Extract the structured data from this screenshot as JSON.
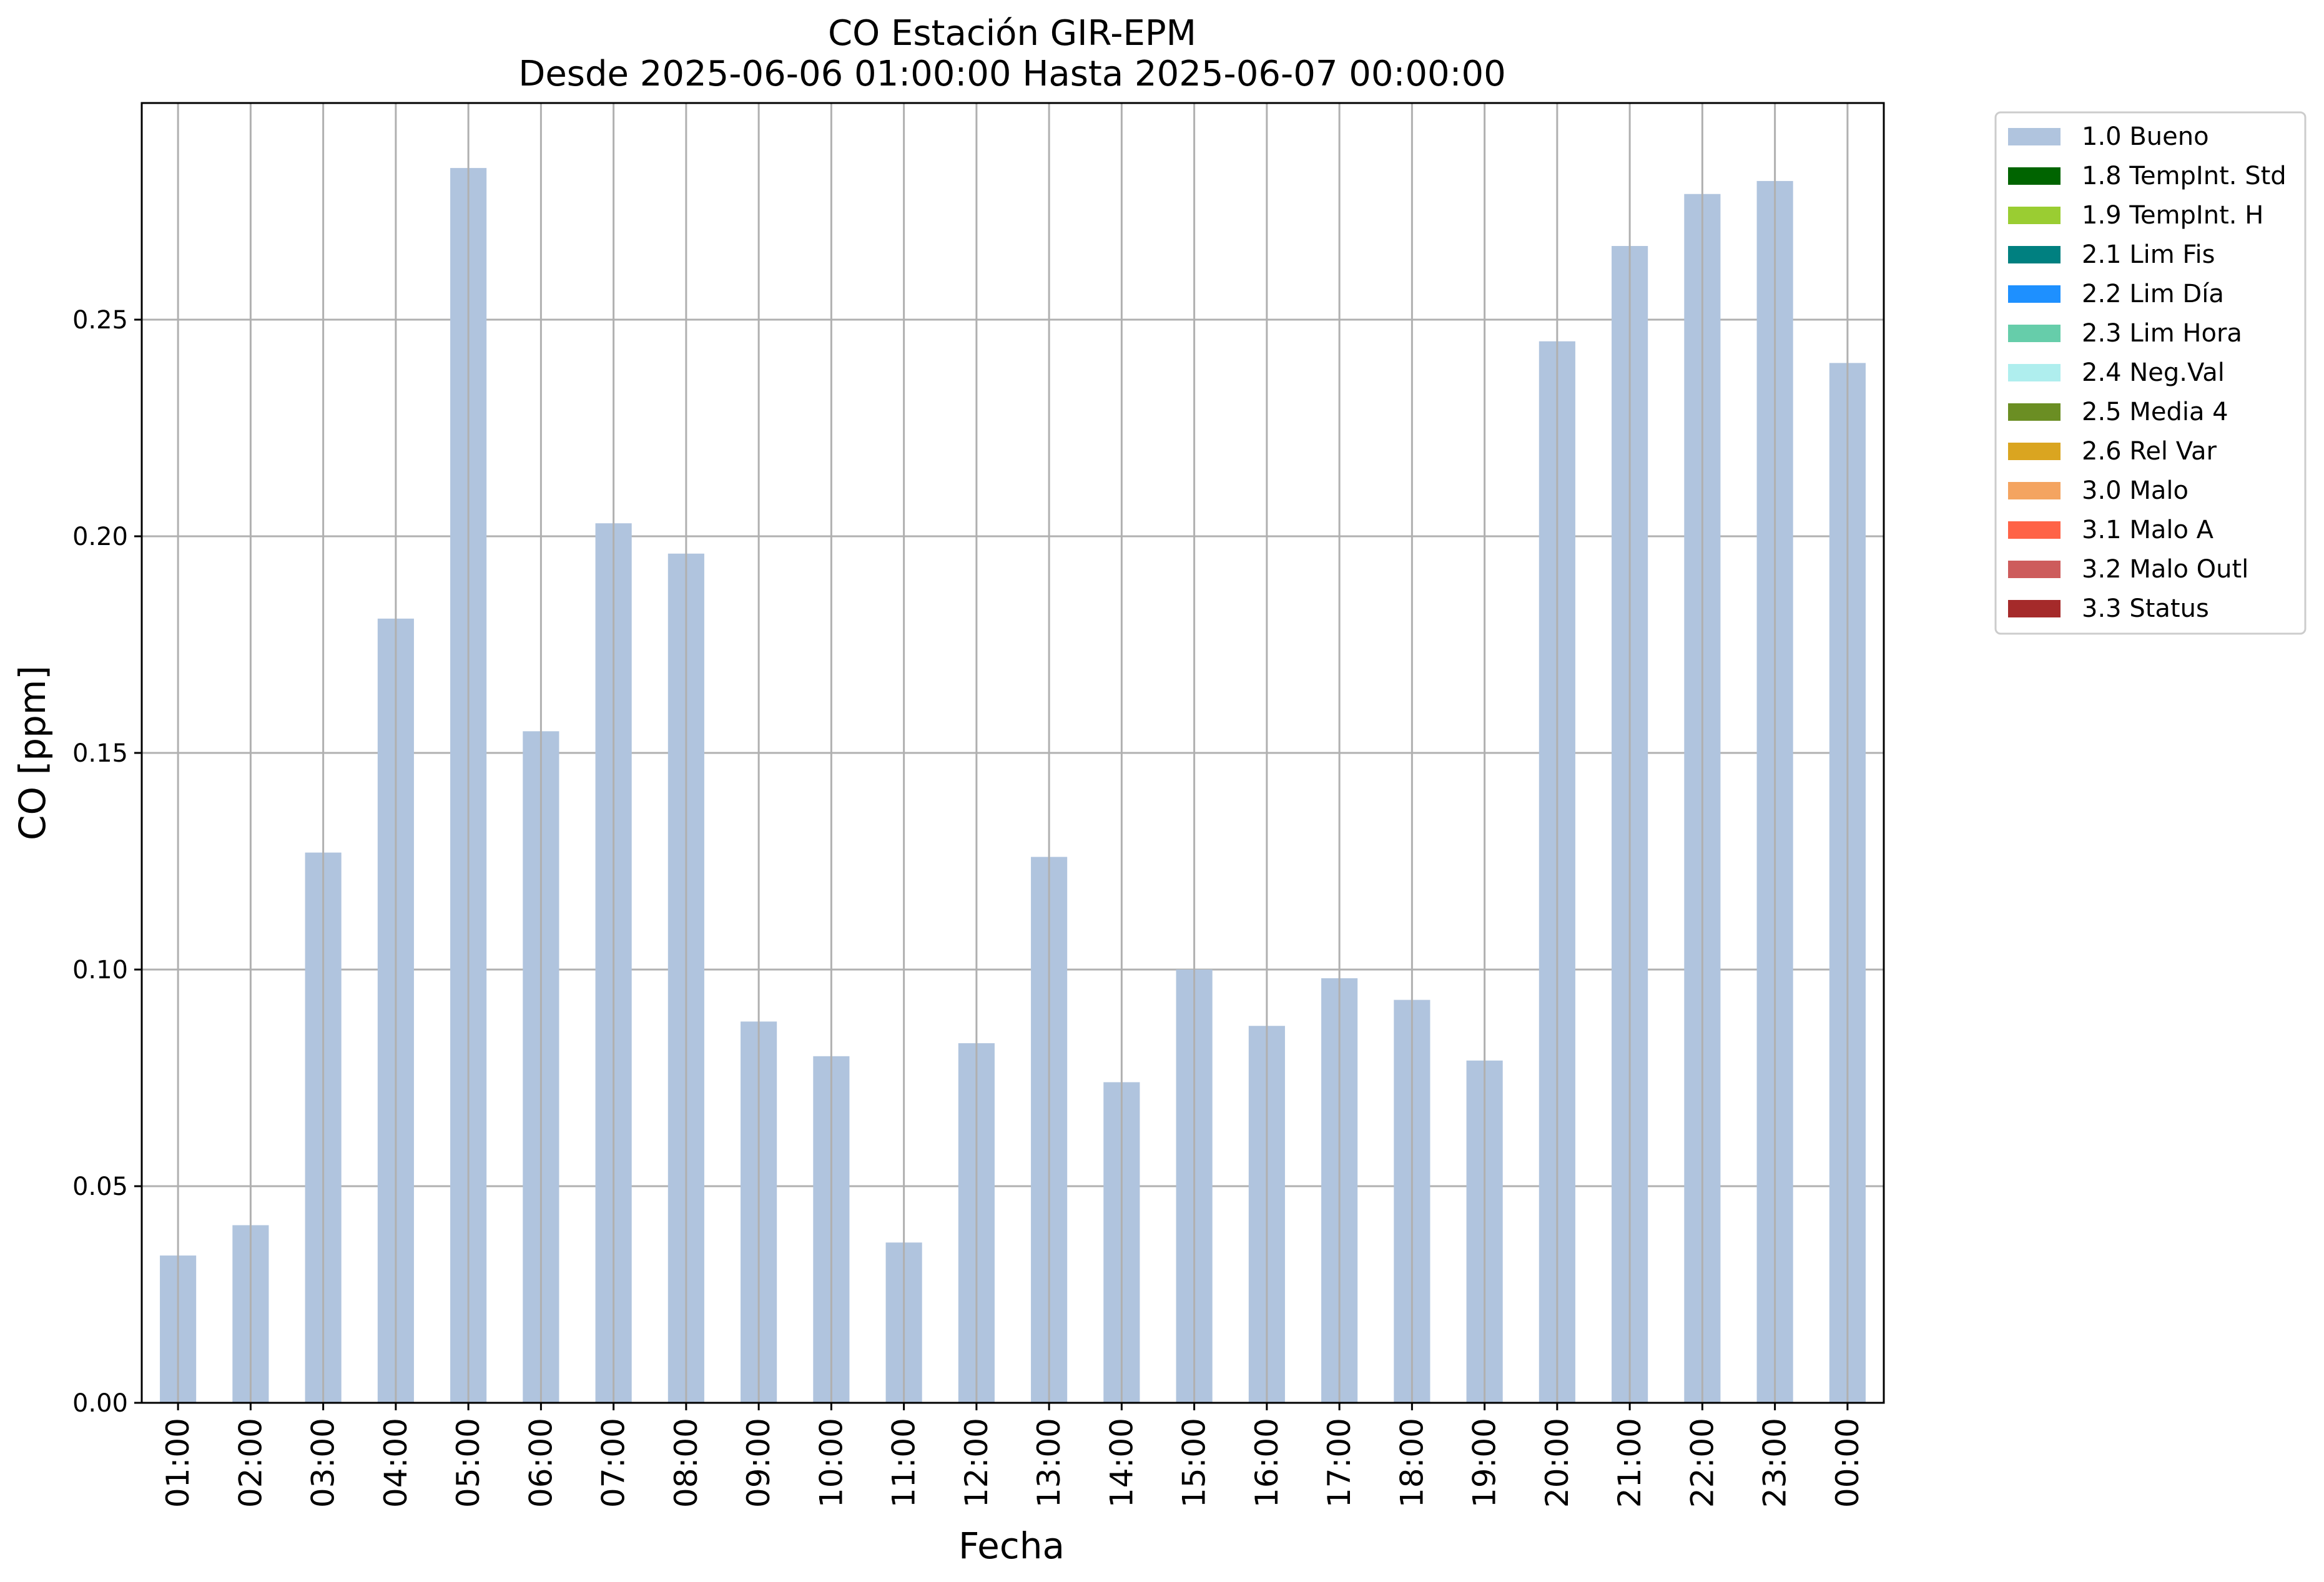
{
  "chart_data": {
    "type": "bar",
    "title": "CO Estación GIR-EPM",
    "subtitle": "Desde 2025-06-06 01:00:00 Hasta 2025-06-07 00:00:00",
    "xlabel": "Fecha",
    "ylabel": "CO [ppm]",
    "ylim": [
      0,
      0.3
    ],
    "yticks": [
      "0.00",
      "0.05",
      "0.10",
      "0.15",
      "0.20",
      "0.25"
    ],
    "grid": true,
    "legend_position": "outside-upper-right",
    "categories": [
      "01:00",
      "02:00",
      "03:00",
      "04:00",
      "05:00",
      "06:00",
      "07:00",
      "08:00",
      "09:00",
      "10:00",
      "11:00",
      "12:00",
      "13:00",
      "14:00",
      "15:00",
      "16:00",
      "17:00",
      "18:00",
      "19:00",
      "20:00",
      "21:00",
      "22:00",
      "23:00",
      "00:00"
    ],
    "series": [
      {
        "name": "1.0 Bueno",
        "color": "#b0c4de",
        "values": [
          0.034,
          0.041,
          0.127,
          0.181,
          0.285,
          0.155,
          0.203,
          0.196,
          0.088,
          0.08,
          0.037,
          0.083,
          0.126,
          0.074,
          0.1,
          0.087,
          0.098,
          0.093,
          0.079,
          0.245,
          0.267,
          0.279,
          0.282,
          0.24
        ]
      }
    ],
    "legend": [
      {
        "label": "1.0 Bueno",
        "color": "#b0c4de"
      },
      {
        "label": "1.8 TempInt. Std",
        "color": "#006400"
      },
      {
        "label": "1.9 TempInt. H",
        "color": "#9acd32"
      },
      {
        "label": "2.1 Lim Fis",
        "color": "#008080"
      },
      {
        "label": "2.2 Lim Día",
        "color": "#1e90ff"
      },
      {
        "label": "2.3 Lim Hora",
        "color": "#66cdaa"
      },
      {
        "label": "2.4 Neg.Val",
        "color": "#afeeee"
      },
      {
        "label": "2.5 Media 4",
        "color": "#6b8e23"
      },
      {
        "label": "2.6 Rel Var",
        "color": "#daa520"
      },
      {
        "label": "3.0 Malo",
        "color": "#f4a460"
      },
      {
        "label": "3.1 Malo A",
        "color": "#ff6347"
      },
      {
        "label": "3.2 Malo Outl",
        "color": "#cd5c5c"
      },
      {
        "label": "3.3 Status",
        "color": "#a52a2a"
      }
    ]
  }
}
